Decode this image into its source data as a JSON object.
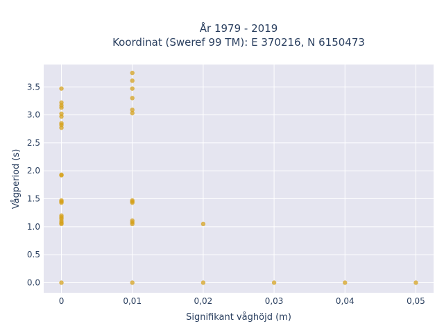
{
  "chart_data": {
    "type": "scatter",
    "title_lines": [
      "År 1979 - 2019",
      "Koordinat (Sweref 99 TM): E 370216, N 6150473"
    ],
    "xlabel": "Signifikant våghöjd (m)",
    "ylabel": "Vågperiod (s)",
    "xlim": [
      -0.0025,
      0.0525
    ],
    "ylim": [
      -0.18,
      3.9
    ],
    "x_ticks": [
      0,
      0.01,
      0.02,
      0.03,
      0.04,
      0.05
    ],
    "x_tick_labels": [
      "0",
      "0,01",
      "0,02",
      "0,03",
      "0,04",
      "0,05"
    ],
    "y_ticks": [
      0,
      0.5,
      1,
      1.5,
      2,
      2.5,
      3,
      3.5
    ],
    "y_tick_labels": [
      "0.0",
      "0.5",
      "1.0",
      "1.5",
      "2.0",
      "2.5",
      "3.0",
      "3.5"
    ],
    "grid": true,
    "marker_color": "#d4a017",
    "plot_bg": "#e5e5f0",
    "points": [
      {
        "x": 0,
        "y": 3.47
      },
      {
        "x": 0,
        "y": 3.22
      },
      {
        "x": 0,
        "y": 3.17
      },
      {
        "x": 0,
        "y": 3.13
      },
      {
        "x": 0,
        "y": 3.02
      },
      {
        "x": 0,
        "y": 2.97
      },
      {
        "x": 0,
        "y": 2.85
      },
      {
        "x": 0,
        "y": 2.82
      },
      {
        "x": 0,
        "y": 2.77
      },
      {
        "x": 0,
        "y": 1.93
      },
      {
        "x": 0,
        "y": 1.92
      },
      {
        "x": 0,
        "y": 1.47
      },
      {
        "x": 0,
        "y": 1.45
      },
      {
        "x": 0,
        "y": 1.43
      },
      {
        "x": 0,
        "y": 1.2
      },
      {
        "x": 0,
        "y": 1.17
      },
      {
        "x": 0,
        "y": 1.14
      },
      {
        "x": 0,
        "y": 1.1
      },
      {
        "x": 0,
        "y": 1.07
      },
      {
        "x": 0,
        "y": 1.05
      },
      {
        "x": 0,
        "y": 0
      },
      {
        "x": 0.01,
        "y": 3.75
      },
      {
        "x": 0.01,
        "y": 3.61
      },
      {
        "x": 0.01,
        "y": 3.47
      },
      {
        "x": 0.01,
        "y": 3.3
      },
      {
        "x": 0.01,
        "y": 3.09
      },
      {
        "x": 0.01,
        "y": 3.03
      },
      {
        "x": 0.01,
        "y": 1.47
      },
      {
        "x": 0.01,
        "y": 1.45
      },
      {
        "x": 0.01,
        "y": 1.43
      },
      {
        "x": 0.01,
        "y": 1.11
      },
      {
        "x": 0.01,
        "y": 1.08
      },
      {
        "x": 0.01,
        "y": 1.05
      },
      {
        "x": 0.01,
        "y": 0
      },
      {
        "x": 0.02,
        "y": 1.05
      },
      {
        "x": 0.02,
        "y": 0
      },
      {
        "x": 0.03,
        "y": 0
      },
      {
        "x": 0.04,
        "y": 0
      },
      {
        "x": 0.05,
        "y": 0
      }
    ]
  }
}
